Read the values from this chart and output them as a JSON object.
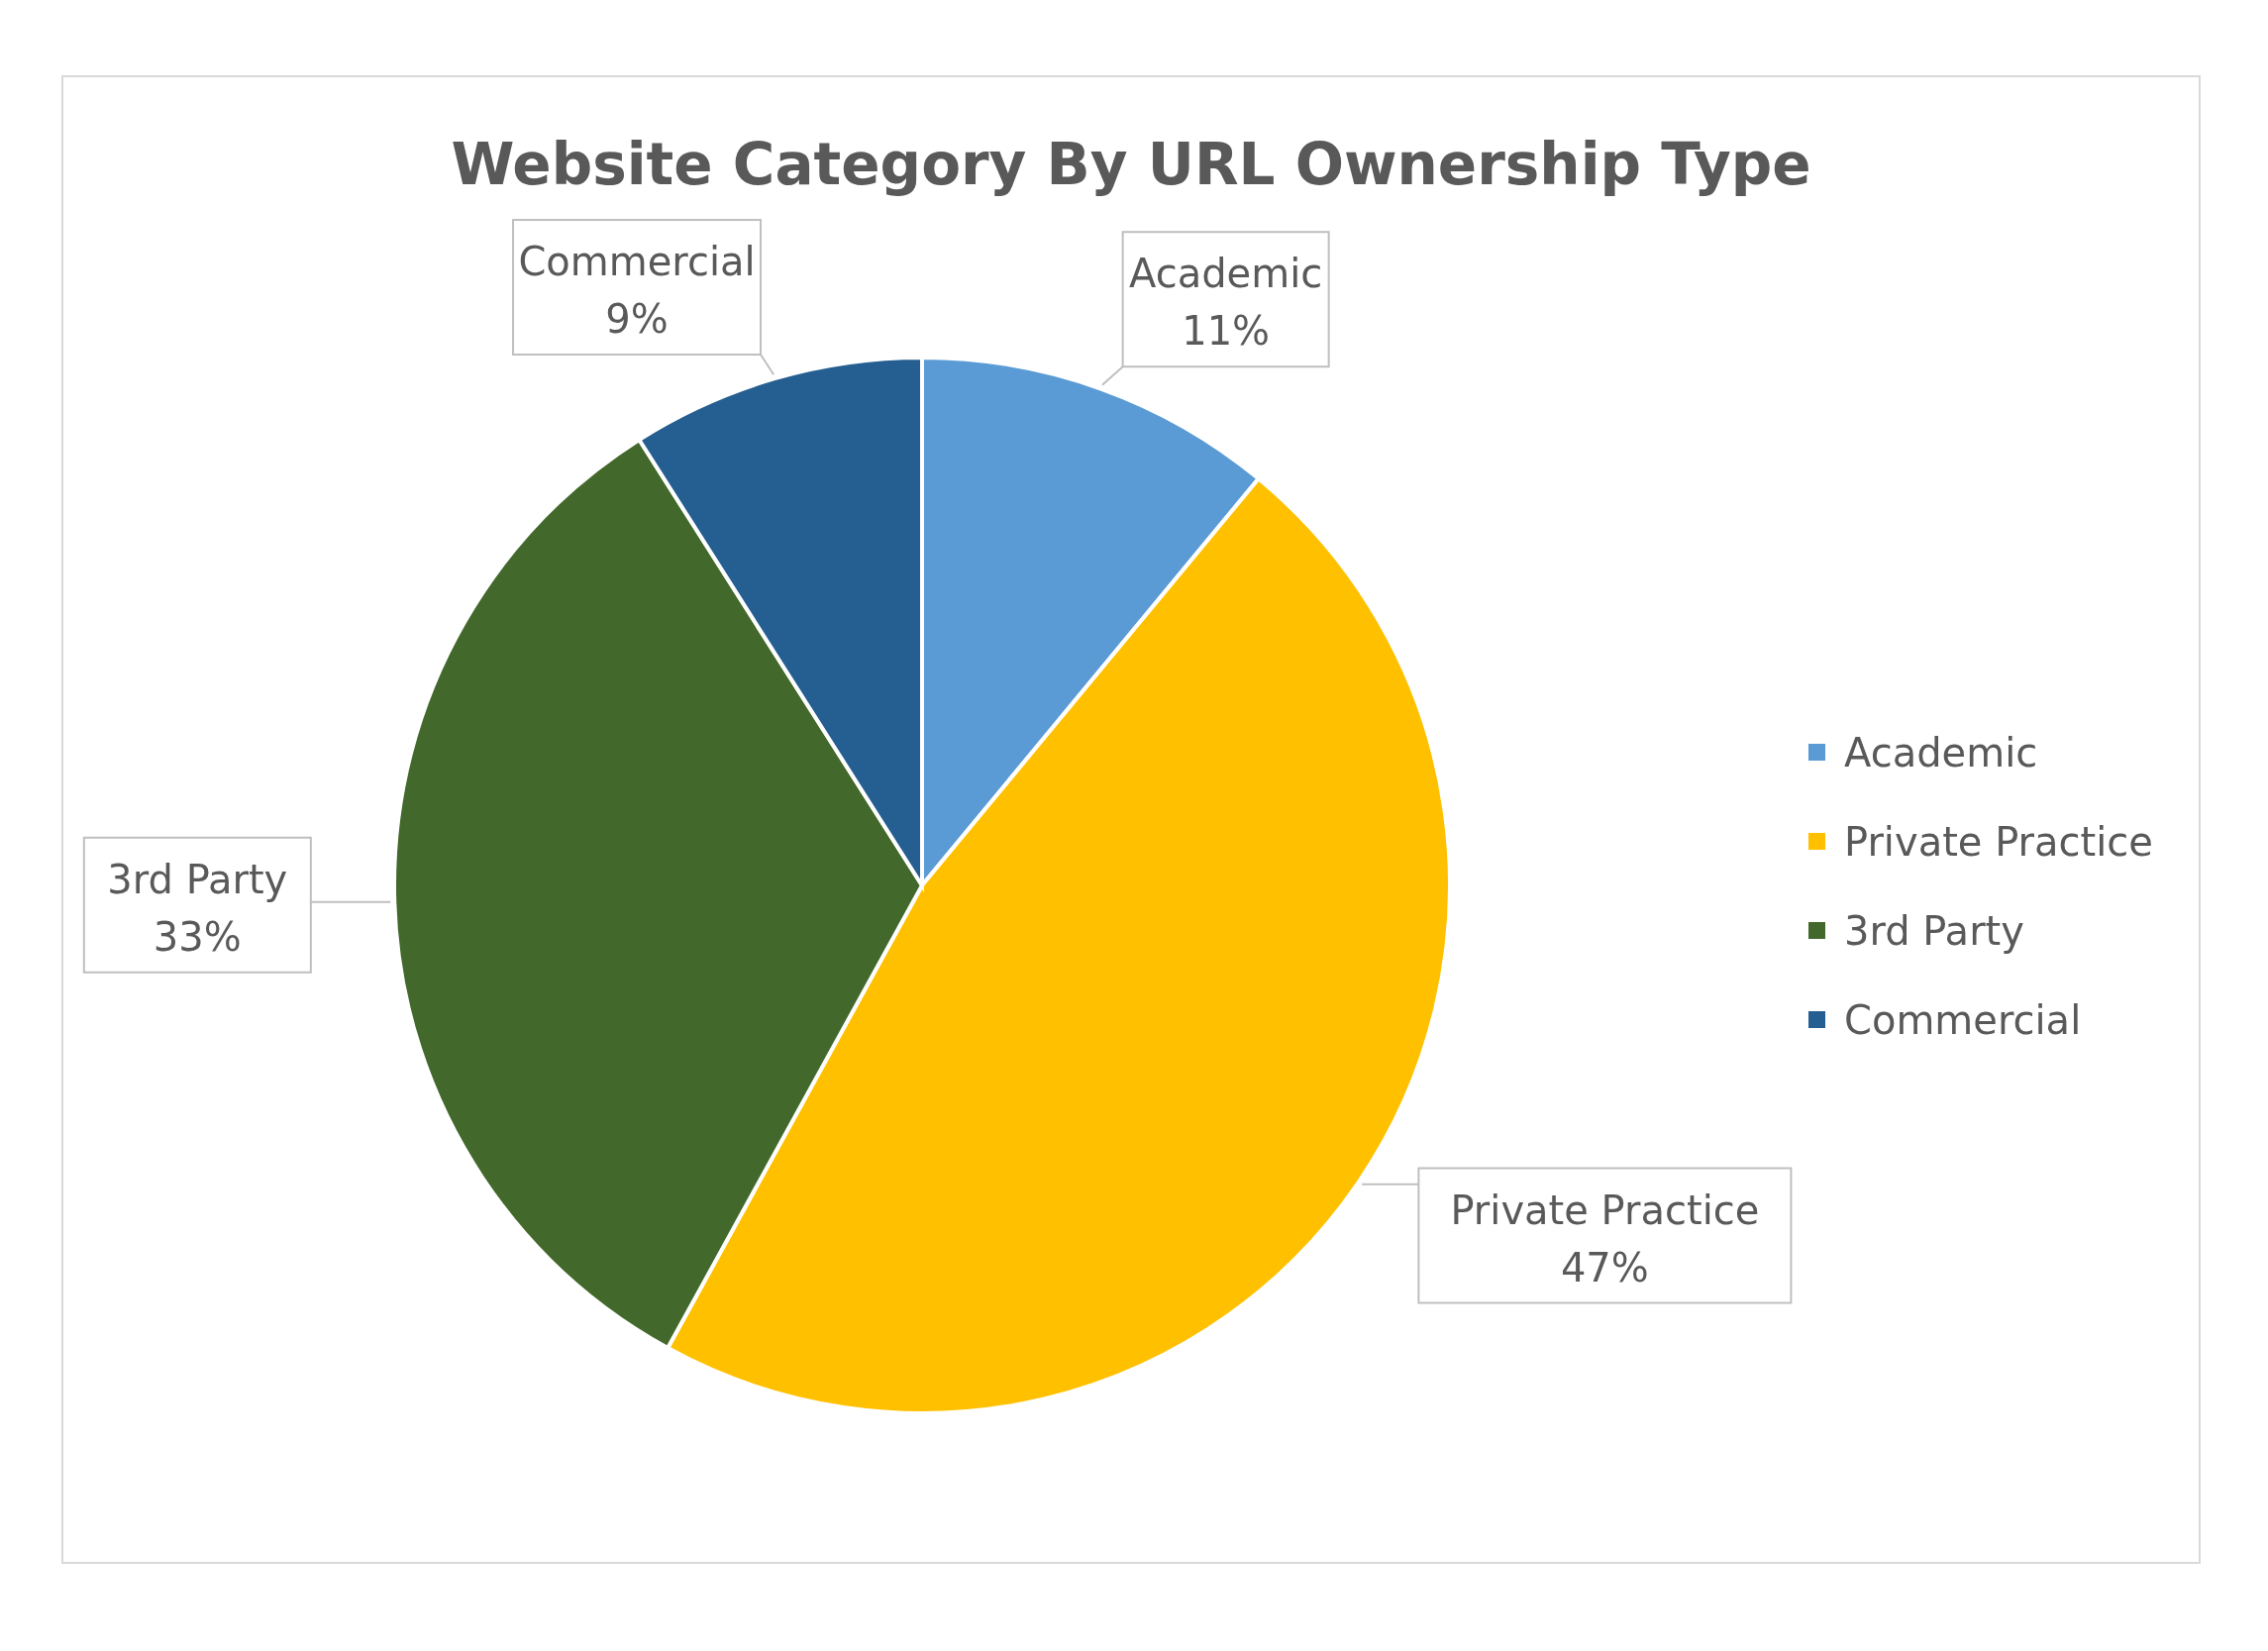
{
  "chart_data": {
    "type": "pie",
    "title": "Website Category By URL Ownership Type",
    "categories": [
      "Academic",
      "Private Practice",
      "3rd Party",
      "Commercial"
    ],
    "values": [
      11,
      47,
      33,
      9
    ],
    "colors": [
      "#5b9bd5",
      "#ffc000",
      "#43682b",
      "#255e91"
    ],
    "value_labels": [
      "11%",
      "47%",
      "33%",
      "9%"
    ],
    "legend": "right"
  }
}
